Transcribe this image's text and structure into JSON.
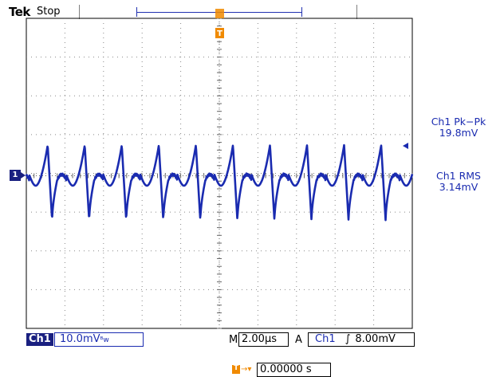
{
  "header": {
    "brand": "Tek",
    "acq_state": "Stop"
  },
  "channel": {
    "marker": "1",
    "badge": "Ch1",
    "scale": "10.0mV",
    "bw_limit_symbol": "ᴮw",
    "color": "#1a2bb0"
  },
  "measurements": [
    {
      "label": "Ch1 Pk−Pk",
      "value": "19.8mV"
    },
    {
      "label": "Ch1 RMS",
      "value": "3.14mV"
    }
  ],
  "timebase": {
    "label": "M",
    "value": "2.00µs"
  },
  "trigger": {
    "mode": "A",
    "source": "Ch1",
    "slope_icon": "rising-edge-icon",
    "slope_symbol": "∫",
    "level": "8.00mV",
    "marker": "T",
    "marker_color": "#f08a00"
  },
  "trigger_position": {
    "value": "0.00000 s"
  },
  "waveform": {
    "period_us": 1.92,
    "peak_mv": 8.0,
    "trough_mv": -11.5
  }
}
